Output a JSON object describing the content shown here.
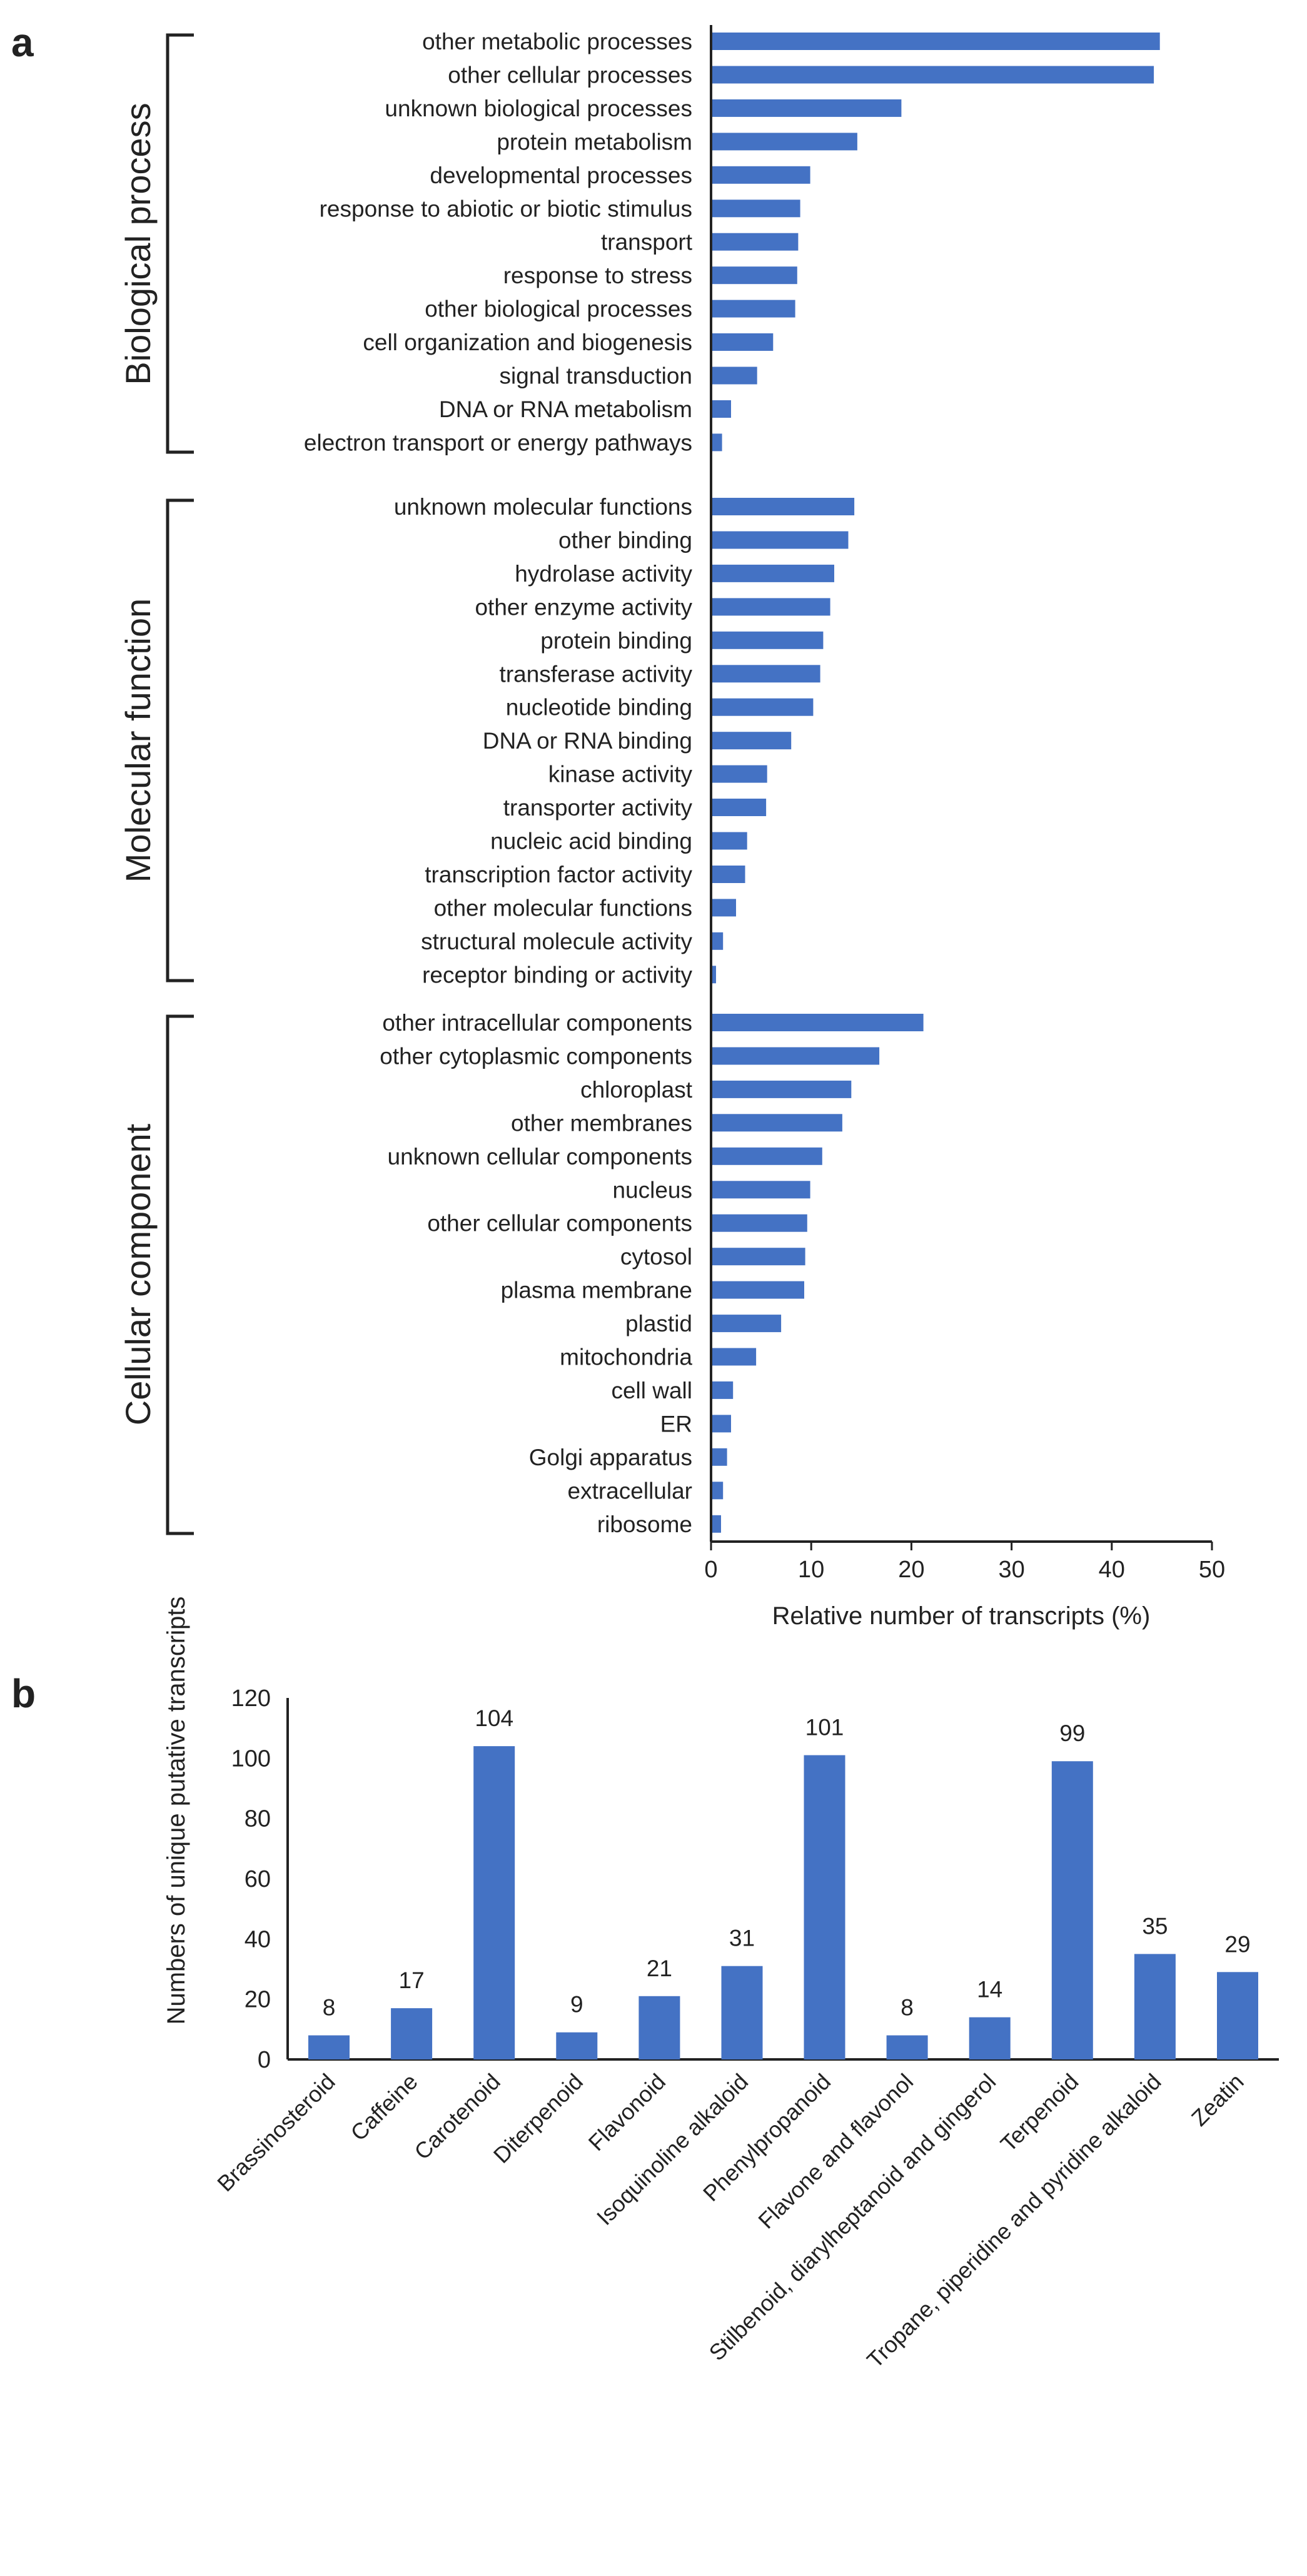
{
  "chart_data": [
    {
      "panel": "a",
      "type": "bar",
      "orientation": "horizontal",
      "xlabel": "Relative number of transcripts (%)",
      "xlim": [
        0,
        50
      ],
      "xticks": [
        "0",
        "10",
        "20",
        "30",
        "40",
        "50"
      ],
      "color": "#4472C4",
      "groups": [
        {
          "name": "Biological process",
          "categories": [
            "other metabolic processes",
            "other cellular processes",
            "unknown biological processes",
            "protein metabolism",
            "developmental processes",
            "response to abiotic or biotic stimulus",
            "transport",
            "response to stress",
            "other biological processes",
            "cell organization and biogenesis",
            "signal transduction",
            "DNA or RNA metabolism",
            "electron transport or energy pathways"
          ],
          "values": [
            44.8,
            44.2,
            19.0,
            14.6,
            9.9,
            8.9,
            8.7,
            8.6,
            8.4,
            6.2,
            4.6,
            2.0,
            1.1
          ]
        },
        {
          "name": "Molecular function",
          "categories": [
            "unknown molecular functions",
            "other binding",
            "hydrolase activity",
            "other enzyme activity",
            "protein binding",
            "transferase activity",
            "nucleotide binding",
            "DNA or RNA binding",
            "kinase activity",
            "transporter activity",
            "nucleic acid binding",
            "transcription factor activity",
            "other molecular functions",
            "structural molecule activity",
            "receptor binding or activity"
          ],
          "values": [
            14.3,
            13.7,
            12.3,
            11.9,
            11.2,
            10.9,
            10.2,
            8.0,
            5.6,
            5.5,
            3.6,
            3.4,
            2.5,
            1.2,
            0.5
          ]
        },
        {
          "name": "Cellular component",
          "categories": [
            "other intracellular components",
            "other cytoplasmic components",
            "chloroplast",
            "other membranes",
            "unknown cellular components",
            "nucleus",
            "other cellular components",
            "cytosol",
            "plasma membrane",
            "plastid",
            "mitochondria",
            "cell wall",
            "ER",
            "Golgi apparatus",
            "extracellular",
            "ribosome"
          ],
          "values": [
            21.2,
            16.8,
            14.0,
            13.1,
            11.1,
            9.9,
            9.6,
            9.4,
            9.3,
            7.0,
            4.5,
            2.2,
            2.0,
            1.6,
            1.2,
            1.0
          ]
        }
      ]
    },
    {
      "panel": "b",
      "type": "bar",
      "orientation": "vertical",
      "ylabel": "Numbers of unique putative transcripts",
      "ylim": [
        0,
        120
      ],
      "yticks": [
        "0",
        "20",
        "40",
        "60",
        "80",
        "100",
        "120"
      ],
      "color": "#4472C4",
      "categories": [
        "Brassinosteroid",
        "Caffeine",
        "Carotenoid",
        "Diterpenoid",
        "Flavonoid",
        "Isoquinoline alkaloid",
        "Phenylpropanoid",
        "Flavone and flavonol",
        "Stilbenoid, diarylheptanoid and gingerol",
        "Terpenoid",
        "Tropane, piperidine and pyridine alkaloid",
        "Zeatin"
      ],
      "values": [
        8,
        17,
        104,
        9,
        21,
        31,
        101,
        8,
        14,
        99,
        35,
        29
      ],
      "data_labels": [
        "8",
        "17",
        "104",
        "9",
        "21",
        "31",
        "101",
        "8",
        "14",
        "99",
        "35",
        "29"
      ]
    }
  ]
}
